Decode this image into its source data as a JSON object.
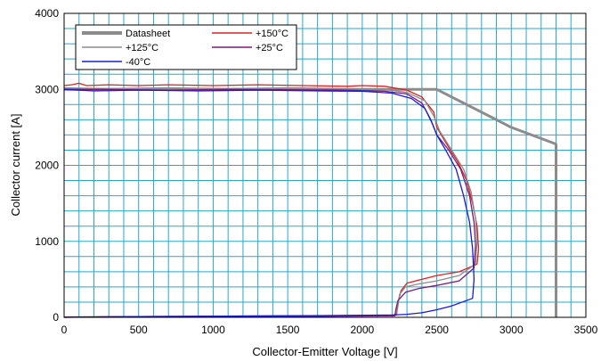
{
  "chart_data": {
    "type": "line",
    "title": "",
    "xlabel": "Collector-Emitter Voltage [V]",
    "ylabel": "Collector current [A]",
    "xlim": [
      0,
      3500
    ],
    "ylim": [
      0,
      4000
    ],
    "xticks": [
      "0",
      "500",
      "1000",
      "1500",
      "2000",
      "2500",
      "3000",
      "3500"
    ],
    "yticks": [
      "0",
      "1000",
      "2000",
      "3000",
      "4000"
    ],
    "x_tick_values": [
      0,
      500,
      1000,
      1500,
      2000,
      2500,
      3000,
      3500
    ],
    "y_tick_values": [
      0,
      1000,
      2000,
      3000,
      4000
    ],
    "minor_grid_step_x": 100,
    "minor_grid_step_y": 200,
    "grid": true,
    "grid_color": "#2aa7c9",
    "legend_position": "top-left",
    "series": [
      {
        "name": "Datasheet",
        "color": "#8c8c8c",
        "points": [
          [
            0,
            3000
          ],
          [
            2500,
            3000
          ],
          [
            2800,
            2700
          ],
          [
            3000,
            2500
          ],
          [
            3300,
            2280
          ],
          [
            3300,
            0
          ]
        ]
      },
      {
        "name": "+150°C",
        "color": "#e02020",
        "points": [
          [
            0,
            3050
          ],
          [
            50,
            3060
          ],
          [
            100,
            3080
          ],
          [
            150,
            3050
          ],
          [
            300,
            3060
          ],
          [
            500,
            3050
          ],
          [
            700,
            3060
          ],
          [
            1000,
            3050
          ],
          [
            1300,
            3060
          ],
          [
            1600,
            3050
          ],
          [
            1900,
            3040
          ],
          [
            2000,
            3050
          ],
          [
            2150,
            3040
          ],
          [
            2300,
            2990
          ],
          [
            2400,
            2900
          ],
          [
            2480,
            2700
          ],
          [
            2500,
            2500
          ],
          [
            2560,
            2300
          ],
          [
            2640,
            2050
          ],
          [
            2700,
            1800
          ],
          [
            2740,
            1500
          ],
          [
            2770,
            1200
          ],
          [
            2780,
            900
          ],
          [
            2770,
            700
          ],
          [
            2650,
            600
          ],
          [
            2500,
            550
          ],
          [
            2400,
            500
          ],
          [
            2300,
            450
          ],
          [
            2260,
            350
          ],
          [
            2240,
            200
          ],
          [
            2230,
            50
          ],
          [
            2200,
            20
          ],
          [
            1500,
            20
          ],
          [
            500,
            10
          ],
          [
            0,
            0
          ]
        ]
      },
      {
        "name": "+125°C",
        "color": "#8c8c8c",
        "points": [
          [
            0,
            3020
          ],
          [
            300,
            3010
          ],
          [
            700,
            3020
          ],
          [
            1100,
            3010
          ],
          [
            1500,
            3020
          ],
          [
            1900,
            3010
          ],
          [
            2150,
            3000
          ],
          [
            2300,
            2960
          ],
          [
            2420,
            2850
          ],
          [
            2480,
            2650
          ],
          [
            2520,
            2450
          ],
          [
            2600,
            2200
          ],
          [
            2680,
            1950
          ],
          [
            2730,
            1650
          ],
          [
            2760,
            1300
          ],
          [
            2770,
            1000
          ],
          [
            2760,
            700
          ],
          [
            2650,
            550
          ],
          [
            2500,
            480
          ],
          [
            2380,
            440
          ],
          [
            2290,
            400
          ],
          [
            2250,
            300
          ],
          [
            2240,
            150
          ],
          [
            2230,
            30
          ],
          [
            1500,
            15
          ],
          [
            500,
            10
          ],
          [
            0,
            5
          ]
        ]
      },
      {
        "name": "+25°C",
        "color": "#7a1a7a",
        "points": [
          [
            0,
            3000
          ],
          [
            300,
            3000
          ],
          [
            700,
            2990
          ],
          [
            1100,
            3000
          ],
          [
            1500,
            2995
          ],
          [
            1900,
            2990
          ],
          [
            2150,
            2975
          ],
          [
            2300,
            2940
          ],
          [
            2400,
            2820
          ],
          [
            2460,
            2600
          ],
          [
            2500,
            2400
          ],
          [
            2580,
            2200
          ],
          [
            2660,
            1950
          ],
          [
            2720,
            1600
          ],
          [
            2750,
            1250
          ],
          [
            2760,
            950
          ],
          [
            2750,
            650
          ],
          [
            2650,
            480
          ],
          [
            2500,
            420
          ],
          [
            2380,
            380
          ],
          [
            2290,
            330
          ],
          [
            2240,
            220
          ],
          [
            2225,
            100
          ],
          [
            2220,
            20
          ],
          [
            1500,
            10
          ],
          [
            500,
            8
          ],
          [
            0,
            5
          ]
        ]
      },
      {
        "name": "-40°C",
        "color": "#1a1adc",
        "points": [
          [
            0,
            3000
          ],
          [
            200,
            2980
          ],
          [
            500,
            2990
          ],
          [
            900,
            2980
          ],
          [
            1300,
            2990
          ],
          [
            1700,
            2980
          ],
          [
            2000,
            2975
          ],
          [
            2200,
            2950
          ],
          [
            2330,
            2880
          ],
          [
            2420,
            2750
          ],
          [
            2470,
            2550
          ],
          [
            2500,
            2400
          ],
          [
            2560,
            2200
          ],
          [
            2630,
            1950
          ],
          [
            2680,
            1600
          ],
          [
            2720,
            1250
          ],
          [
            2740,
            900
          ],
          [
            2750,
            500
          ],
          [
            2740,
            250
          ],
          [
            2600,
            150
          ],
          [
            2500,
            100
          ],
          [
            2400,
            60
          ],
          [
            2300,
            40
          ],
          [
            2200,
            30
          ],
          [
            1500,
            20
          ],
          [
            500,
            10
          ],
          [
            0,
            0
          ]
        ]
      }
    ]
  }
}
